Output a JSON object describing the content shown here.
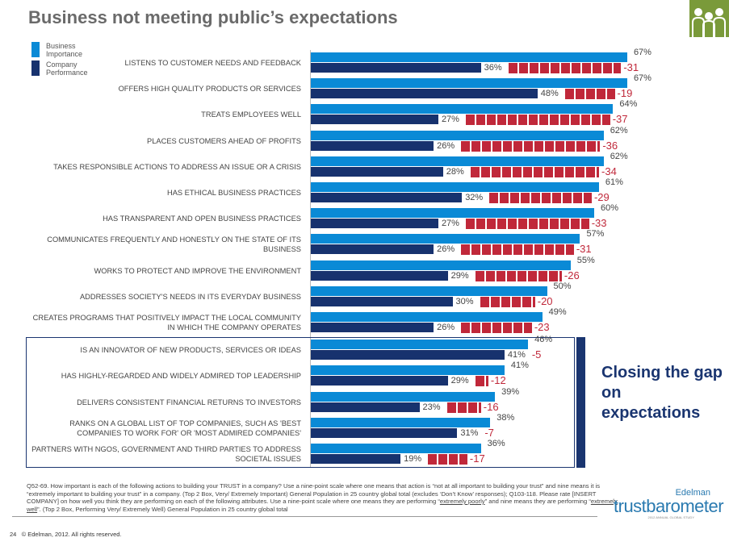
{
  "title": "Business not meeting public’s expectations",
  "colors": {
    "importance": "#0a8ad6",
    "performance": "#17326e",
    "gap": "#c0283a"
  },
  "legend": {
    "importance": "Business Importance",
    "performance": "Company Performance"
  },
  "callout": "Closing the gap on expectations",
  "footnote": {
    "part1": "Q52-69. How important is each of the following actions to building your TRUST in a company? Use a nine-point scale where one means that action is “not at all important to building your trust” and nine means it is “extremely important to building your trust” in a company. (Top 2 Box, Very/ Extremely Important) General Population in 25 country global total (excludes ‘Don’t Know’ responses); Q103-118. Please rate [INSERT COMPANY] on how well you think they are performing on each of the following attributes. Use a nine-point scale where one means they are performing “",
    "u1": "extremely poorly",
    "part2": "” and nine means they are performing “",
    "u2": "extremely well",
    "part3": "”.  (Top 2 Box,  Performing Very/ Extremely Well)  General Population in 25 country global total"
  },
  "page_number": "24",
  "copyright": "© Edelman, 2012. All rights reserved.",
  "logo": {
    "brand": "Edelman",
    "product": "trustbarometer",
    "tagline": "2012 ANNUAL GLOBAL STUDY"
  },
  "chart_data": {
    "type": "bar",
    "orientation": "horizontal",
    "categories": [
      "LISTENS TO CUSTOMER NEEDS AND FEEDBACK",
      "OFFERS HIGH QUALITY PRODUCTS OR SERVICES",
      "TREATS EMPLOYEES WELL",
      "PLACES CUSTOMERS AHEAD OF PROFITS",
      "TAKES RESPONSIBLE ACTIONS TO ADDRESS AN ISSUE OR A CRISIS",
      "HAS ETHICAL BUSINESS PRACTICES",
      "HAS TRANSPARENT AND OPEN BUSINESS PRACTICES",
      "COMMUNICATES FREQUENTLY AND HONESTLY ON THE STATE OF ITS BUSINESS",
      "WORKS TO PROTECT AND IMPROVE THE ENVIRONMENT",
      "ADDRESSES SOCIETY'S NEEDS IN ITS EVERYDAY BUSINESS",
      "CREATES PROGRAMS THAT POSITIVELY IMPACT THE LOCAL COMMUNITY IN WHICH THE COMPANY OPERATES",
      "IS AN INNOVATOR OF NEW PRODUCTS, SERVICES OR IDEAS",
      "HAS HIGHLY-REGARDED AND WIDELY ADMIRED TOP LEADERSHIP",
      "DELIVERS CONSISTENT FINANCIAL RETURNS TO INVESTORS",
      "RANKS ON A GLOBAL LIST OF TOP COMPANIES, SUCH AS 'BEST COMPANIES TO WORK FOR' OR 'MOST ADMIRED COMPANIES'",
      "PARTNERS WITH NGOS, GOVERNMENT AND THIRD PARTIES TO ADDRESS SOCIETAL ISSUES"
    ],
    "series": [
      {
        "name": "Business Importance",
        "values": [
          67,
          67,
          64,
          62,
          62,
          61,
          60,
          57,
          55,
          50,
          49,
          46,
          41,
          39,
          38,
          36
        ]
      },
      {
        "name": "Company Performance",
        "values": [
          36,
          48,
          27,
          26,
          28,
          32,
          27,
          26,
          29,
          30,
          26,
          41,
          29,
          23,
          31,
          19
        ]
      }
    ],
    "gaps": [
      -31,
      -19,
      -37,
      -36,
      -34,
      -29,
      -33,
      -31,
      -26,
      -20,
      -23,
      -5,
      -12,
      -16,
      -7,
      -17
    ],
    "value_suffix": "%",
    "xlim": [
      0,
      100
    ]
  }
}
